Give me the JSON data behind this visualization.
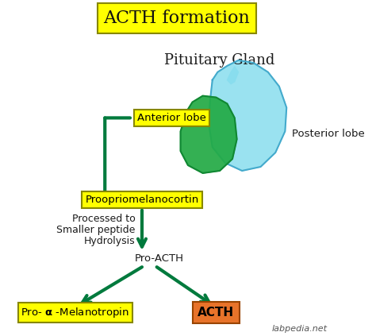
{
  "title": "ACTH formation",
  "bg_color": "#FFFFFF",
  "arrow_color": "#007A3D",
  "arrow_lw": 3.0,
  "box_yellow": "#FFFF00",
  "box_orange": "#E8732A",
  "text_dark": "#1a1a1a",
  "pituitary_label": "Pituitary Gland",
  "anterior_label": "Anterior lobe",
  "posterior_label": "Posterior lobe",
  "proopi_label": "Proopriomelanocortin",
  "processed_lines": [
    "Processed to",
    "Smaller peptide",
    "Hydrolysis"
  ],
  "pro_acth_label": "Pro-ACTH",
  "acth_label": "ACTH",
  "watermark": "labpedia.net",
  "anterior_lobe_color": "#22AA44",
  "posterior_lobe_color": "#88DDEE",
  "posterior_lobe_outline": "#44AACC",
  "anterior_lobe_outline": "#118833"
}
